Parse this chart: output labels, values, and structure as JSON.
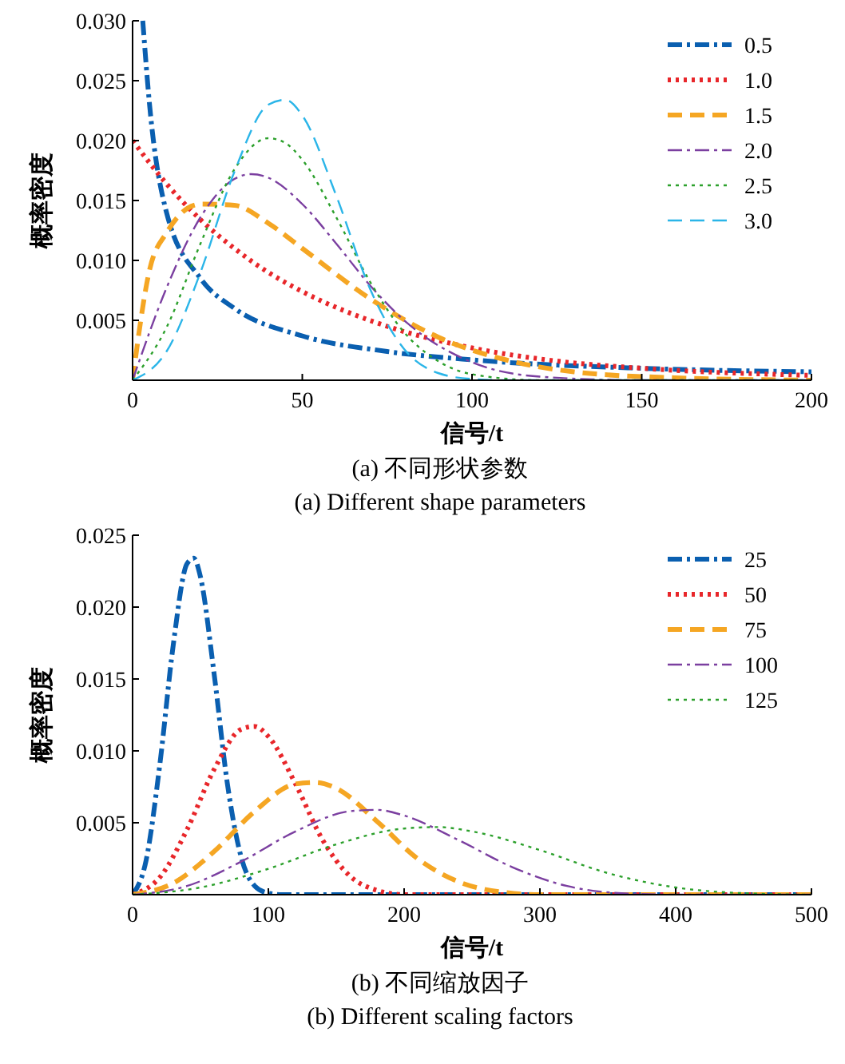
{
  "chart_data": [
    {
      "type": "line",
      "xlabel": "信号/t",
      "ylabel": "概率密度",
      "xlim": [
        0,
        200
      ],
      "ylim": [
        0,
        0.03
      ],
      "xticks": [
        0,
        50,
        100,
        150,
        200
      ],
      "yticks": [
        {
          "value": 0.005,
          "label": "0.005"
        },
        {
          "value": 0.01,
          "label": "0.010"
        },
        {
          "value": 0.015,
          "label": "0.015"
        },
        {
          "value": 0.02,
          "label": "0.020"
        },
        {
          "value": 0.025,
          "label": "0.025"
        },
        {
          "value": 0.03,
          "label": "0.030"
        }
      ],
      "legend": "top right",
      "grid": false,
      "marker": "none",
      "annotations": [
        "(a) 不同形状参数",
        "(a) Different shape parameters"
      ],
      "series": [
        {
          "name": "0.5",
          "color": "#0a5fb0",
          "line_style": "dashdot",
          "x": [
            3,
            5,
            10,
            20,
            30,
            50,
            75,
            100,
            150,
            200
          ],
          "values": [
            0.03,
            0.023,
            0.014,
            0.0085,
            0.006,
            0.0037,
            0.0024,
            0.0017,
            0.001,
            0.0007
          ]
        },
        {
          "name": "1.0",
          "color": "#e8262a",
          "line_style": "dotted",
          "x": [
            0,
            10,
            20,
            30,
            40,
            50,
            75,
            100,
            125,
            150,
            200
          ],
          "values": [
            0.02,
            0.0164,
            0.0134,
            0.011,
            0.009,
            0.0074,
            0.0045,
            0.0027,
            0.0016,
            0.001,
            0.0004
          ]
        },
        {
          "name": "1.5",
          "color": "#f5a623",
          "line_style": "dashed",
          "x": [
            0,
            5,
            10,
            20,
            30,
            40,
            50,
            70,
            90,
            110,
            130,
            160,
            200
          ],
          "values": [
            0,
            0.0092,
            0.0123,
            0.0147,
            0.0146,
            0.0131,
            0.011,
            0.0068,
            0.0036,
            0.0017,
            0.0007,
            0.0002,
            0
          ]
        },
        {
          "name": "2.0",
          "color": "#7b3fa0",
          "line_style": "dashdot",
          "x": [
            0,
            10,
            20,
            30,
            35,
            40,
            50,
            60,
            70,
            80,
            100,
            120,
            150,
            200
          ],
          "values": [
            0,
            0.0077,
            0.0136,
            0.0168,
            0.0172,
            0.0169,
            0.0147,
            0.0114,
            0.0079,
            0.005,
            0.0015,
            0.0003,
            0,
            0
          ]
        },
        {
          "name": "2.5",
          "color": "#2ca02c",
          "line_style": "dotted",
          "x": [
            0,
            10,
            20,
            30,
            40,
            45,
            50,
            60,
            70,
            80,
            90,
            100,
            120,
            200
          ],
          "values": [
            0,
            0.0044,
            0.0114,
            0.0176,
            0.0202,
            0.0198,
            0.0184,
            0.0136,
            0.0082,
            0.004,
            0.0016,
            0.0005,
            0,
            0
          ]
        },
        {
          "name": "3.0",
          "color": "#2bb5e8",
          "line_style": "dashed",
          "x": [
            0,
            10,
            20,
            30,
            40,
            45,
            50,
            60,
            70,
            80,
            90,
            100,
            110,
            200
          ],
          "values": [
            0,
            0.0024,
            0.009,
            0.0174,
            0.023,
            0.0234,
            0.0221,
            0.0154,
            0.0076,
            0.0026,
            0.0006,
            0.0001,
            0,
            0
          ]
        }
      ]
    },
    {
      "type": "line",
      "xlabel": "信号/t",
      "ylabel": "概率密度",
      "xlim": [
        0,
        500
      ],
      "ylim": [
        0,
        0.025
      ],
      "xticks": [
        0,
        100,
        200,
        300,
        400,
        500
      ],
      "yticks": [
        {
          "value": 0.005,
          "label": "0.005"
        },
        {
          "value": 0.01,
          "label": "0.010"
        },
        {
          "value": 0.015,
          "label": "0.015"
        },
        {
          "value": 0.02,
          "label": "0.020"
        },
        {
          "value": 0.025,
          "label": "0.025"
        }
      ],
      "legend": "top right",
      "grid": false,
      "marker": "none",
      "annotations": [
        "(b) 不同缩放因子",
        "(b) Different scaling factors"
      ],
      "series": [
        {
          "name": "25",
          "color": "#0a5fb0",
          "line_style": "dashdot",
          "x": [
            0,
            10,
            20,
            30,
            40,
            45,
            50,
            60,
            70,
            80,
            90,
            100,
            110,
            500
          ],
          "values": [
            0,
            0.0024,
            0.009,
            0.0174,
            0.023,
            0.0234,
            0.0221,
            0.0154,
            0.0076,
            0.0026,
            0.0006,
            0.0001,
            0,
            0
          ]
        },
        {
          "name": "50",
          "color": "#e8262a",
          "line_style": "dotted",
          "x": [
            0,
            20,
            40,
            60,
            80,
            90,
            100,
            120,
            140,
            160,
            180,
            200,
            220,
            500
          ],
          "values": [
            0,
            0.0012,
            0.0045,
            0.0087,
            0.0115,
            0.0117,
            0.011,
            0.0077,
            0.0038,
            0.0013,
            0.0003,
            0,
            0,
            0
          ]
        },
        {
          "name": "75",
          "color": "#f5a623",
          "line_style": "dashed",
          "x": [
            0,
            30,
            60,
            90,
            120,
            135,
            150,
            180,
            210,
            240,
            270,
            300,
            330,
            500
          ],
          "values": [
            0,
            0.0008,
            0.003,
            0.0058,
            0.0077,
            0.0078,
            0.0074,
            0.0051,
            0.0025,
            0.0009,
            0.0002,
            0,
            0,
            0
          ]
        },
        {
          "name": "100",
          "color": "#7b3fa0",
          "line_style": "dashdot",
          "x": [
            0,
            40,
            80,
            120,
            160,
            180,
            200,
            240,
            280,
            320,
            360,
            400,
            440,
            500
          ],
          "values": [
            0,
            0.0006,
            0.0023,
            0.0044,
            0.0058,
            0.0059,
            0.0055,
            0.0038,
            0.0019,
            0.0006,
            0.0001,
            0,
            0,
            0
          ]
        },
        {
          "name": "125",
          "color": "#2ca02c",
          "line_style": "dotted",
          "x": [
            0,
            50,
            100,
            150,
            200,
            225,
            250,
            300,
            350,
            400,
            450,
            500
          ],
          "values": [
            0,
            0.0005,
            0.0018,
            0.0035,
            0.0046,
            0.0047,
            0.0044,
            0.0031,
            0.0015,
            0.0005,
            0.0001,
            0
          ]
        }
      ]
    }
  ]
}
